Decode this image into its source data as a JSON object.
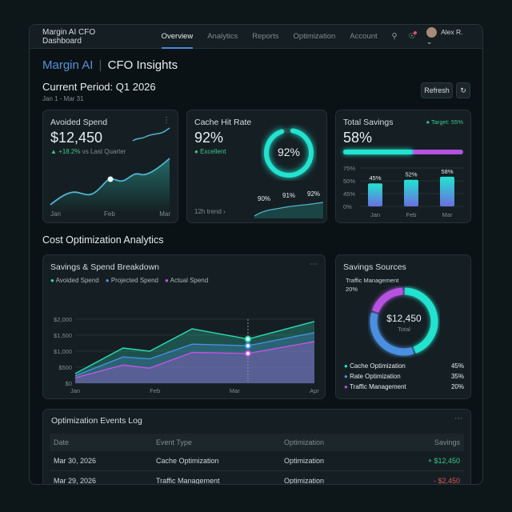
{
  "nav": {
    "title": "Margin AI CFO Dashboard",
    "tabs": [
      "Overview",
      "Analytics",
      "Reports",
      "Optimization",
      "Account"
    ],
    "active_tab": "Overview",
    "user": "Alex R."
  },
  "header": {
    "brand": "Margin AI",
    "title": "CFO Insights",
    "period": "Current Period: Q1 2026",
    "range": "Jan 1 - Mar 31",
    "refresh": "Refresh"
  },
  "avoided": {
    "title": "Avoided Spend",
    "value": "$12,450",
    "change": "+18.2%",
    "change_label": "vs Last Quarter",
    "x_labels": [
      "Jan",
      "Feb",
      "Mar"
    ]
  },
  "cache": {
    "title": "Cache Hit Rate",
    "value": "92%",
    "status": "Excellent",
    "ring_value": "92%",
    "ring_fraction": 0.92,
    "trend_label": "12h trend",
    "trend_points": [
      "90%",
      "91%",
      "92%"
    ]
  },
  "savings": {
    "title": "Total Savings",
    "value": "58%",
    "target": "Target: 55%",
    "progress_fraction": 0.58,
    "y_ticks": [
      "75%",
      "50%",
      "45%",
      "0%"
    ],
    "bars": [
      {
        "label": "Jan",
        "value": 45,
        "text": "45%"
      },
      {
        "label": "Feb",
        "value": 52,
        "text": "52%"
      },
      {
        "label": "Mar",
        "value": 58,
        "text": "58%"
      }
    ]
  },
  "section_title": "Cost Optimization Analytics",
  "chart_data": {
    "type": "area",
    "title": "Savings & Spend Breakdown",
    "x_ticks": [
      "Jan",
      "Feb",
      "Mar",
      "Apr"
    ],
    "y_ticks": [
      "$2,000",
      "$1,500",
      "$1,000",
      "$500",
      "$0"
    ],
    "ylim": [
      0,
      2000
    ],
    "grid": true,
    "legend": "top-left",
    "x": [
      "Jan 1",
      "Jan 19",
      "Jan 29",
      "Feb 15",
      "Mar 6",
      "Apr 1"
    ],
    "series": [
      {
        "name": "Avoided Spend",
        "color": "#2fd9b5",
        "values": [
          300,
          1100,
          1000,
          1700,
          1380,
          1930
        ]
      },
      {
        "name": "Projected Spend",
        "color": "#4a8fe0",
        "values": [
          230,
          820,
          760,
          1220,
          1170,
          1580
        ]
      },
      {
        "name": "Actual Spend",
        "color": "#c255e0",
        "values": [
          170,
          570,
          470,
          960,
          930,
          1300
        ]
      }
    ]
  },
  "sources": {
    "title": "Savings Sources",
    "callout_label": "Traffic Management",
    "callout_value": "20%",
    "total": "$12,450",
    "total_label": "Total",
    "items": [
      {
        "name": "Cache Optimization",
        "pct": "45%",
        "value": 45,
        "color": "#22e3d0"
      },
      {
        "name": "Rate Optimization",
        "pct": "35%",
        "value": 35,
        "color": "#4a8fe0"
      },
      {
        "name": "Traffic Management",
        "pct": "20%",
        "value": 20,
        "color": "#b552e0"
      }
    ]
  },
  "events": {
    "title": "Optimization Events Log",
    "columns": [
      "Date",
      "Event Type",
      "Optimization",
      "Savings"
    ],
    "rows": [
      {
        "date": "Mar 30, 2026",
        "type": "Cache Optimization",
        "opt": "Optimization",
        "savings": "+ $12,450",
        "positive": true
      },
      {
        "date": "Mar 29, 2026",
        "type": "Traffic Management",
        "opt": "Optimization",
        "savings": "- $2,450",
        "positive": false
      }
    ]
  }
}
